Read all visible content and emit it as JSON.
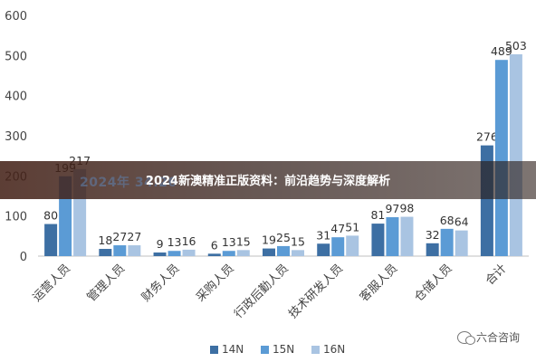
{
  "chart_data": {
    "type": "bar",
    "categories": [
      "运营人员",
      "管理人员",
      "财务人员",
      "采购人员",
      "行政后勤人员",
      "技术研发人员",
      "客服人员",
      "仓储人员",
      "合计"
    ],
    "series": [
      {
        "name": "14N",
        "color": "#3d6fa3",
        "values": [
          80,
          18,
          9,
          6,
          19,
          31,
          81,
          32,
          276
        ]
      },
      {
        "name": "15N",
        "color": "#5b9bd5",
        "values": [
          199,
          27,
          13,
          13,
          25,
          47,
          97,
          68,
          489
        ]
      },
      {
        "name": "16N",
        "color": "#a9c4e2",
        "values": [
          217,
          27,
          16,
          15,
          15,
          51,
          98,
          64,
          503
        ]
      }
    ],
    "yticks": [
      0,
      100,
      200,
      300,
      400,
      500,
      600
    ],
    "ylim": [
      0,
      600
    ],
    "grid": false,
    "legend_position": "bottom"
  },
  "banner": {
    "title": "2024新澳精准正版资料：前沿趋势与深度解析",
    "ghost_text": "2024年                                                                              34.26"
  },
  "watermark": {
    "text": "六合咨询",
    "icon": "wechat-icon"
  }
}
